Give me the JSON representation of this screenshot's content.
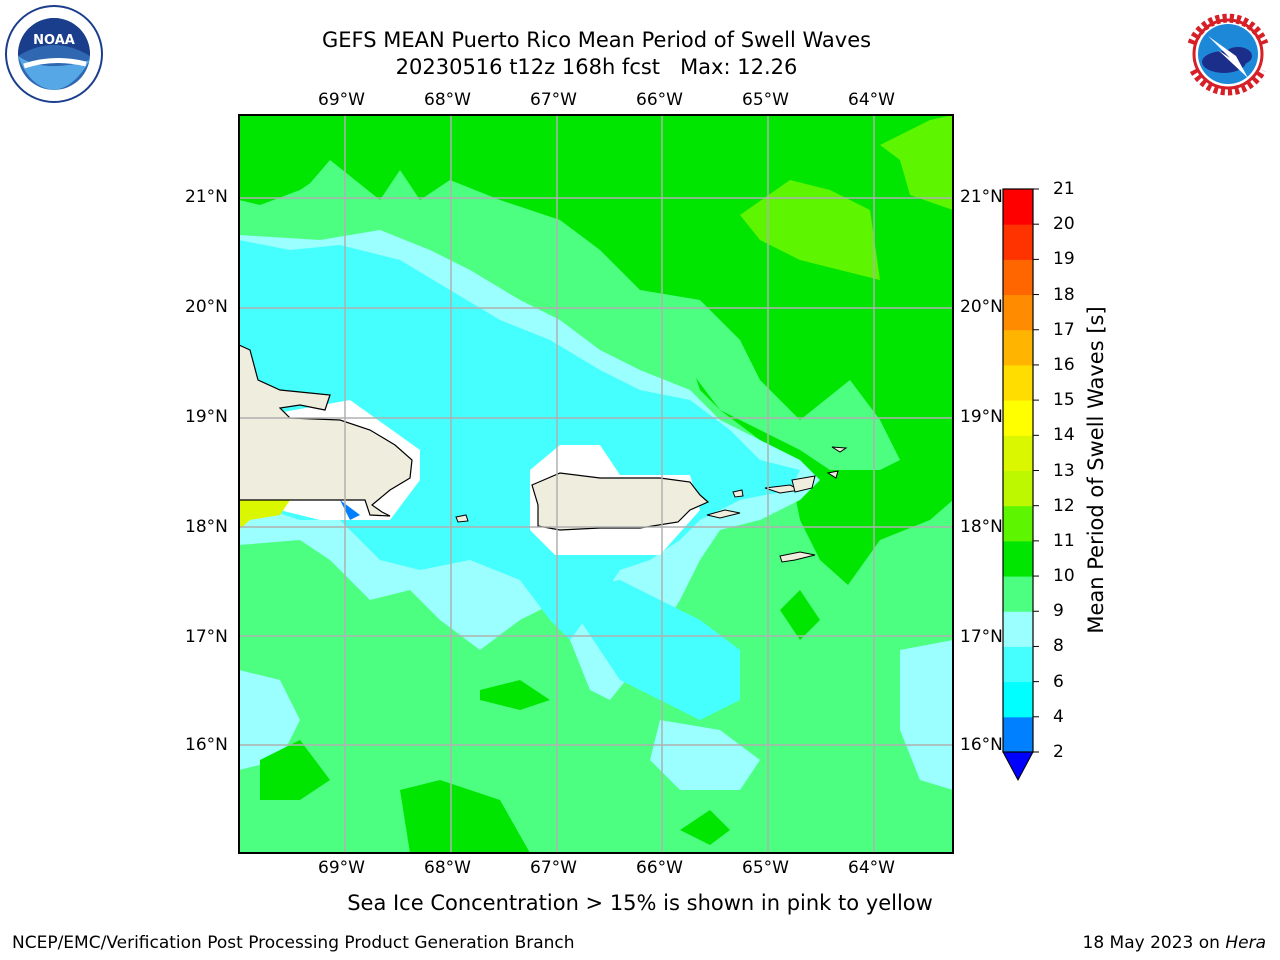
{
  "title": {
    "line1": "GEFS MEAN Puerto Rico Mean Period of Swell Waves",
    "line2": "20230516 t12z 168h fcst   Max: 12.26"
  },
  "logos": {
    "left": "noaa-logo",
    "right": "nws-logo"
  },
  "map": {
    "lon_labels": [
      "69°W",
      "68°W",
      "67°W",
      "66°W",
      "65°W",
      "64°W"
    ],
    "lat_labels": [
      "21°N",
      "20°N",
      "19°N",
      "18°N",
      "17°N",
      "16°N"
    ],
    "colors": {
      "land": "#efedde",
      "gridlines": "#b0b0b0"
    }
  },
  "colorbar": {
    "label": "Mean Period of Swell Waves [s]",
    "ticks": [
      "2",
      "4",
      "6",
      "8",
      "9",
      "10",
      "11",
      "12",
      "13",
      "14",
      "15",
      "16",
      "17",
      "18",
      "19",
      "20",
      "21"
    ],
    "colors": [
      "#0000ff",
      "#0080ff",
      "#00ffff",
      "#45ffff",
      "#9afffe",
      "#4cff80",
      "#00e600",
      "#5ef501",
      "#bdf700",
      "#dbf700",
      "#ffff00",
      "#ffdd00",
      "#ffb500",
      "#ff8c00",
      "#ff6600",
      "#ff3300",
      "#ff0000"
    ]
  },
  "footer": {
    "note": "Sea Ice Concentration > 15% is shown in pink to yellow",
    "left": "NCEP/EMC/Verification Post Processing Product Generation Branch",
    "date": "18 May 2023 on",
    "host": "Hera"
  }
}
